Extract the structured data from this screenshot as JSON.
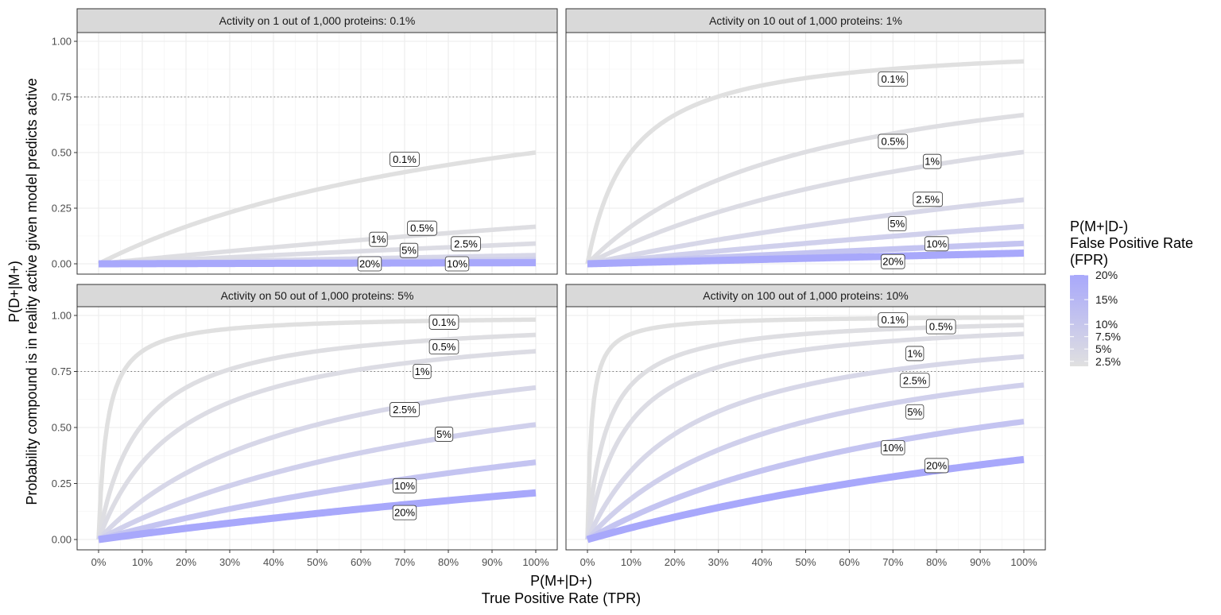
{
  "chart_data": {
    "type": "line",
    "xlabel_line1": "P(M+|D+)",
    "xlabel_line2": "True Positive Rate (TPR)",
    "ylabel_line1": "P(D+|M+)",
    "ylabel_line2": "Probability compound is in reality active given model predicts active",
    "xlim": [
      0,
      1
    ],
    "ylim": [
      0,
      1
    ],
    "x_ticks": [
      "0%",
      "10%",
      "20%",
      "30%",
      "40%",
      "50%",
      "60%",
      "70%",
      "80%",
      "90%",
      "100%"
    ],
    "y_ticks": [
      "0.00",
      "0.25",
      "0.50",
      "0.75",
      "1.00"
    ],
    "reference_line_y": 0.75,
    "fpr_series": [
      {
        "fpr": 0.001,
        "label": "0.1%",
        "color": "#e0e0e0",
        "width": 5.5
      },
      {
        "fpr": 0.005,
        "label": "0.5%",
        "color": "#dedee2",
        "width": 5.6
      },
      {
        "fpr": 0.01,
        "label": "1%",
        "color": "#dcdce4",
        "width": 5.7
      },
      {
        "fpr": 0.025,
        "label": "2.5%",
        "color": "#d7d7e8",
        "width": 6.0
      },
      {
        "fpr": 0.05,
        "label": "5%",
        "color": "#d0d0ec",
        "width": 6.4
      },
      {
        "fpr": 0.1,
        "label": "10%",
        "color": "#c4c4f1",
        "width": 7.2
      },
      {
        "fpr": 0.2,
        "label": "20%",
        "color": "#a8a8fb",
        "width": 9.0
      }
    ],
    "panels": [
      {
        "title": "Activity on 1 out of 1,000 proteins: 0.1%",
        "prevalence": 0.001,
        "labels": [
          {
            "text": "0.1%",
            "x": 0.7,
            "y": 0.47
          },
          {
            "text": "0.5%",
            "x": 0.74,
            "y": 0.16
          },
          {
            "text": "1%",
            "x": 0.64,
            "y": 0.11
          },
          {
            "text": "5%",
            "x": 0.71,
            "y": 0.06
          },
          {
            "text": "2.5%",
            "x": 0.84,
            "y": 0.09
          },
          {
            "text": "20%",
            "x": 0.62,
            "y": 0.0
          },
          {
            "text": "10%",
            "x": 0.82,
            "y": 0.0
          }
        ]
      },
      {
        "title": "Activity on 10 out of 1,000 proteins: 1%",
        "prevalence": 0.01,
        "labels": [
          {
            "text": "0.1%",
            "x": 0.7,
            "y": 0.83
          },
          {
            "text": "0.5%",
            "x": 0.7,
            "y": 0.55
          },
          {
            "text": "1%",
            "x": 0.79,
            "y": 0.46
          },
          {
            "text": "2.5%",
            "x": 0.78,
            "y": 0.29
          },
          {
            "text": "5%",
            "x": 0.71,
            "y": 0.18
          },
          {
            "text": "10%",
            "x": 0.8,
            "y": 0.09
          },
          {
            "text": "20%",
            "x": 0.7,
            "y": 0.01
          }
        ]
      },
      {
        "title": "Activity on 50 out of 1,000 proteins: 5%",
        "prevalence": 0.05,
        "labels": [
          {
            "text": "0.1%",
            "x": 0.79,
            "y": 0.97
          },
          {
            "text": "0.5%",
            "x": 0.79,
            "y": 0.86
          },
          {
            "text": "1%",
            "x": 0.74,
            "y": 0.75
          },
          {
            "text": "2.5%",
            "x": 0.7,
            "y": 0.58
          },
          {
            "text": "5%",
            "x": 0.79,
            "y": 0.47
          },
          {
            "text": "10%",
            "x": 0.7,
            "y": 0.24
          },
          {
            "text": "20%",
            "x": 0.7,
            "y": 0.12
          }
        ]
      },
      {
        "title": "Activity on 100 out of 1,000 proteins: 10%",
        "prevalence": 0.1,
        "labels": [
          {
            "text": "0.1%",
            "x": 0.7,
            "y": 0.98
          },
          {
            "text": "0.5%",
            "x": 0.81,
            "y": 0.95
          },
          {
            "text": "1%",
            "x": 0.75,
            "y": 0.83
          },
          {
            "text": "2.5%",
            "x": 0.75,
            "y": 0.71
          },
          {
            "text": "5%",
            "x": 0.75,
            "y": 0.57
          },
          {
            "text": "10%",
            "x": 0.7,
            "y": 0.41
          },
          {
            "text": "20%",
            "x": 0.8,
            "y": 0.33
          }
        ]
      }
    ],
    "legend": {
      "title_lines": [
        "P(M+|D-)",
        "False Positive Rate",
        "(FPR)"
      ],
      "entries": [
        {
          "label": "20%",
          "value": 0.2
        },
        {
          "label": "15%",
          "value": 0.15
        },
        {
          "label": "10%",
          "value": 0.1
        },
        {
          "label": "7.5%",
          "value": 0.075
        },
        {
          "label": "5%",
          "value": 0.05
        },
        {
          "label": "2.5%",
          "value": 0.025
        }
      ],
      "colors": {
        "low": "#e0e0e0",
        "high": "#a8a8fb"
      }
    }
  }
}
